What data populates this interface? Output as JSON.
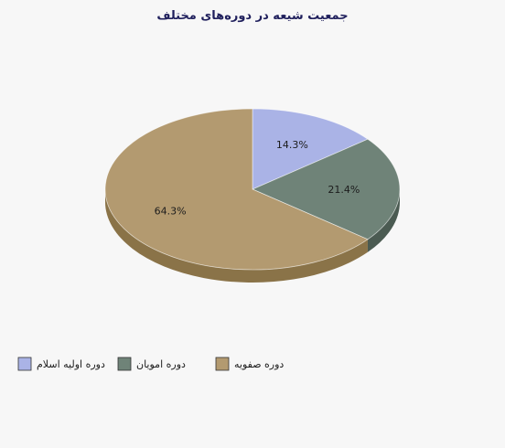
{
  "chart_data": {
    "type": "pie",
    "title": "جمعیت شیعه در دوره‌های  مختلف",
    "legend_position": "bottom",
    "slices": [
      {
        "name": "دوره اولیه اسلام",
        "value": 14.3,
        "label": "14.3%",
        "color": "#aab3e6",
        "side_color": "#7f88c0"
      },
      {
        "name": "دوره امویان",
        "value": 21.4,
        "label": "21.4%",
        "color": "#6f8378",
        "side_color": "#4b5b52"
      },
      {
        "name": "دوره صفویه",
        "value": 64.3,
        "label": "64.3%",
        "color": "#b39a70",
        "side_color": "#8a7348"
      }
    ]
  }
}
